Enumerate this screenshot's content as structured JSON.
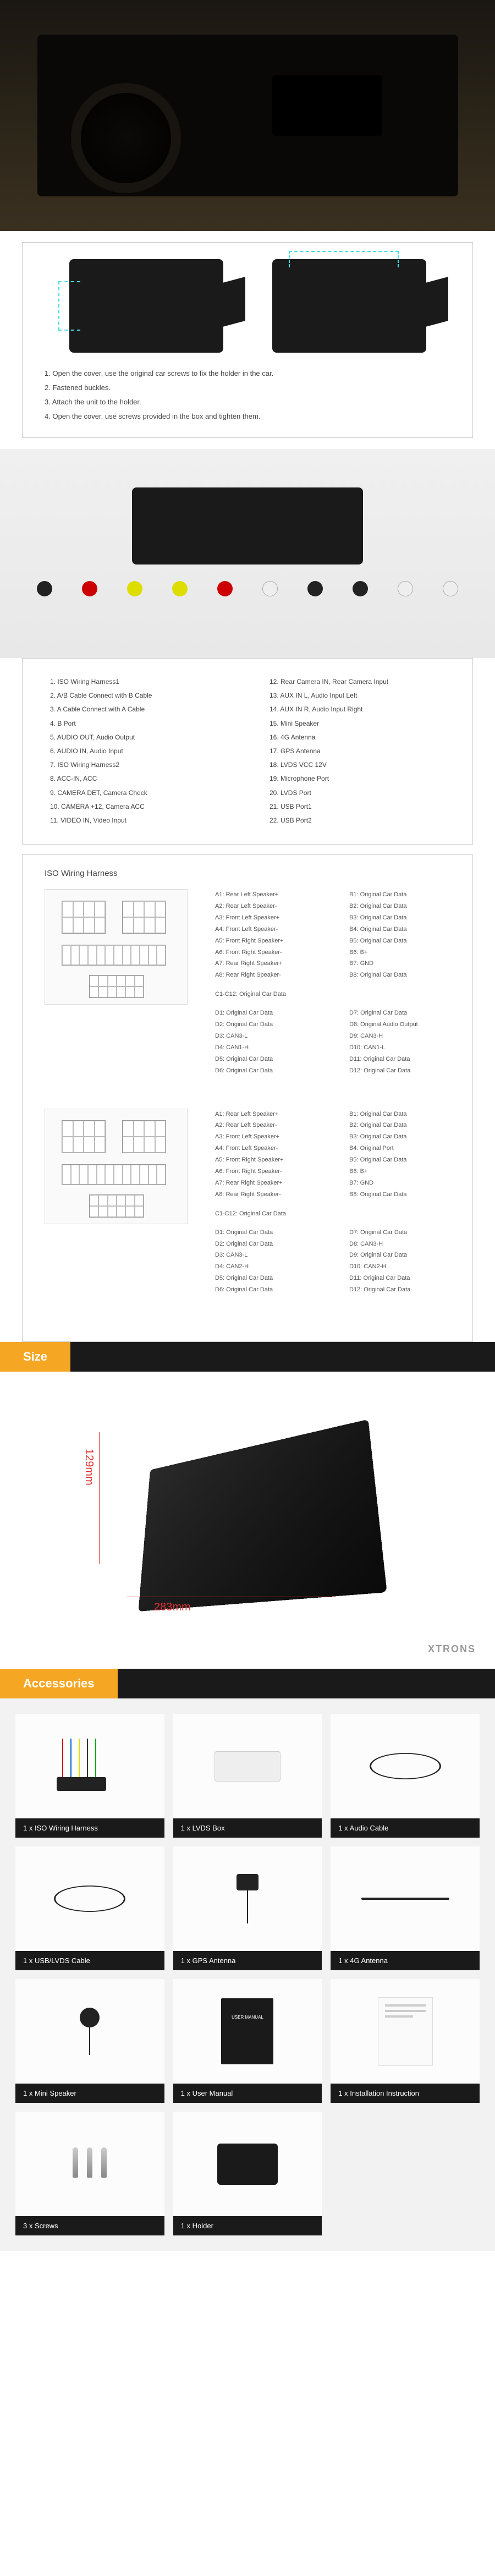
{
  "install": {
    "steps": [
      "1. Open the cover, use the original car screws to fix the holder in the car.",
      "2. Fastened buckles.",
      "3. Attach the unit to the holder.",
      "4. Open the cover, use screws provided in the box and tighten them."
    ]
  },
  "ports": {
    "left": [
      "1. ISO Wiring Harness1",
      "2. A/B Cable Connect with B Cable",
      "3. A Cable Connect with A Cable",
      "4. B Port",
      "5. AUDIO OUT, Audio Output",
      "6. AUDIO IN, Audio Input",
      "7. ISO Wiring Harness2",
      "8. ACC-IN, ACC",
      "9. CAMERA DET, Camera Check",
      "10. CAMERA +12, Camera ACC",
      "11. VIDEO IN, Video Input"
    ],
    "right": [
      "12. Rear Camera IN, Rear Camera Input",
      "13. AUX IN L, Audio Input Left",
      "14. AUX IN R, Audio Input Right",
      "15. Mini Speaker",
      "16. 4G Antenna",
      "17. GPS Antenna",
      "18. LVDS VCC 12V",
      "19. Microphone Port",
      "20. LVDS Port",
      "21. USB Port1",
      "22. USB Port2"
    ]
  },
  "iso": {
    "title": "ISO Wiring Harness",
    "block1": {
      "colA": [
        "A1: Rear Left Speaker+",
        "A2: Rear Left Speaker-",
        "A3: Front Left Speaker+",
        "A4: Front Left Speaker-",
        "A5: Front Right Speaker+",
        "A6: Front Right Speaker-",
        "A7: Rear Right Speaker+",
        "A8: Rear Right Speaker-"
      ],
      "colB": [
        "B1: Original Car Data",
        "B2: Original Car Data",
        "B3: Original Car Data",
        "B4: Original Car Data",
        "B5: Original Car Data",
        "B6: B+",
        "B7: GND",
        "B8: Original Car Data"
      ],
      "c_line": "C1-C12: Original Car Data",
      "colD": [
        "D1: Original Car Data",
        "D2: Original Car Data",
        "D3: CAN3-L",
        "D4: CAN1-H",
        "D5: Original Car Data",
        "D6: Original Car Data"
      ],
      "colD2": [
        "D7: Original Car Data",
        "D8: Original Audio Output",
        "D9: CAN3-H",
        "D10: CAN1-L",
        "D11: Original Car Data",
        "D12: Original Car Data"
      ]
    },
    "block2": {
      "colA": [
        "A1: Rear Left Speaker+",
        "A2: Rear Left Speaker-",
        "A3: Front Left Speaker+",
        "A4: Front Left Speaker-",
        "A5: Front Right Speaker+",
        "A6: Front Right Speaker-",
        "A7: Rear Right Speaker+",
        "A8: Rear Right Speaker-"
      ],
      "colB": [
        "B1: Original Car Data",
        "B2: Original Car Data",
        "B3: Original Car Data",
        "B4: Original Port",
        "B5: Original Car Data",
        "B6: B+",
        "B7: GND",
        "B8: Original Car Data"
      ],
      "c_line": "C1-C12: Original Car Data",
      "colD": [
        "D1: Original Car Data",
        "D2: Original Car Data",
        "D3: CAN3-L",
        "D4: CAN2-H",
        "D5: Original Car Data",
        "D6: Original Car Data"
      ],
      "colD2": [
        "D7: Original Car Data",
        "D8: CAN3-H",
        "D9: Original Car Data",
        "D10: CAN2-H",
        "D11: Original Car Data",
        "D12: Original Car Data"
      ]
    }
  },
  "size": {
    "title": "Size",
    "height_mm": "129mm",
    "width_mm": "283mm",
    "watermark": "XTRONS"
  },
  "accessories": {
    "title": "Accessories",
    "items": [
      {
        "label": "1 x ISO Wiring Harness",
        "type": "harness"
      },
      {
        "label": "1 x LVDS Box",
        "type": "box"
      },
      {
        "label": "1 x Audio Cable",
        "type": "cable"
      },
      {
        "label": "1 x USB/LVDS Cable",
        "type": "cable"
      },
      {
        "label": "1 x GPS Antenna",
        "type": "gps"
      },
      {
        "label": "1 x 4G Antenna",
        "type": "antenna"
      },
      {
        "label": "1 x Mini Speaker",
        "type": "mic"
      },
      {
        "label": "1 x User Manual",
        "type": "manual"
      },
      {
        "label": "1 x Installation Instruction",
        "type": "paper"
      },
      {
        "label": "3 x Screws",
        "type": "screws"
      },
      {
        "label": "1 x Holder",
        "type": "holder"
      }
    ]
  },
  "colors": {
    "accent": "#f5a623",
    "dim_line": "#d33",
    "dark": "#1a1a1a"
  }
}
